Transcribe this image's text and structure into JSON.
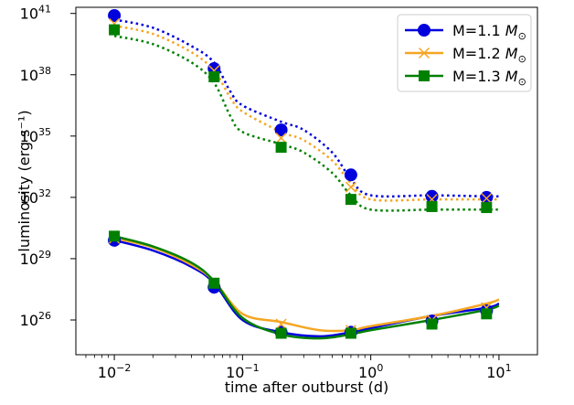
{
  "chart_data": {
    "type": "line",
    "xscale": "log",
    "yscale": "log",
    "xlabel": "time after outburst (d)",
    "ylabel": "luminosity (erg s⁻¹)",
    "xlim_log10": [
      -2.3,
      1.3
    ],
    "ylim_log10": [
      24.3,
      41.3
    ],
    "x_ticks": [
      {
        "value": 0.01,
        "base": "10",
        "exp": "−2"
      },
      {
        "value": 0.1,
        "base": "10",
        "exp": "−1"
      },
      {
        "value": 1,
        "base": "10",
        "exp": "0"
      },
      {
        "value": 10,
        "base": "10",
        "exp": "1"
      }
    ],
    "y_ticks": [
      {
        "value": 1e+26,
        "base": "10",
        "exp": "26"
      },
      {
        "value": 1e+29,
        "base": "10",
        "exp": "29"
      },
      {
        "value": 1e+32,
        "base": "10",
        "exp": "32"
      },
      {
        "value": 1e+35,
        "base": "10",
        "exp": "35"
      },
      {
        "value": 1e+38,
        "base": "10",
        "exp": "38"
      },
      {
        "value": 1e+41,
        "base": "10",
        "exp": "41"
      }
    ],
    "legend_position": "top-right",
    "series": [
      {
        "name": "M=1.1 M⊙",
        "legend_text": "M=1.1 ",
        "legend_sym": "M",
        "legend_sub": "⊙",
        "color": "#0000dd",
        "marker": "circle",
        "dotted_logL": [
          [
            0.01,
            40.7
          ],
          [
            0.02,
            40.3
          ],
          [
            0.04,
            39.4
          ],
          [
            0.06,
            38.6
          ],
          [
            0.08,
            37.2
          ],
          [
            0.1,
            36.5
          ],
          [
            0.2,
            35.7
          ],
          [
            0.3,
            35.3
          ],
          [
            0.5,
            34.2
          ],
          [
            0.7,
            32.9
          ],
          [
            1.0,
            32.1
          ],
          [
            3,
            32.1
          ],
          [
            8,
            32.05
          ],
          [
            10,
            32.05
          ]
        ],
        "dotted_markers": [
          [
            0.01,
            40.9
          ],
          [
            0.06,
            38.3
          ],
          [
            0.2,
            35.3
          ],
          [
            0.7,
            33.1
          ],
          [
            3,
            32.05
          ],
          [
            8,
            32.0
          ]
        ],
        "solid_logL": [
          [
            0.01,
            29.9
          ],
          [
            0.02,
            29.4
          ],
          [
            0.04,
            28.6
          ],
          [
            0.06,
            27.8
          ],
          [
            0.1,
            26.0
          ],
          [
            0.2,
            25.4
          ],
          [
            0.4,
            25.2
          ],
          [
            0.7,
            25.4
          ],
          [
            1.0,
            25.6
          ],
          [
            3,
            26.2
          ],
          [
            8,
            26.6
          ],
          [
            10,
            26.8
          ]
        ],
        "solid_markers": [
          [
            0.01,
            29.9
          ],
          [
            0.06,
            27.6
          ],
          [
            0.2,
            25.4
          ],
          [
            0.7,
            25.4
          ],
          [
            3,
            25.95
          ],
          [
            8,
            26.45
          ]
        ]
      },
      {
        "name": "M=1.2 M⊙",
        "legend_text": "M=1.2 ",
        "legend_sym": "M",
        "legend_sub": "⊙",
        "color": "#f5a623",
        "marker": "x",
        "dotted_logL": [
          [
            0.01,
            40.4
          ],
          [
            0.02,
            40.0
          ],
          [
            0.04,
            39.1
          ],
          [
            0.06,
            38.2
          ],
          [
            0.08,
            36.9
          ],
          [
            0.1,
            36.2
          ],
          [
            0.2,
            35.2
          ],
          [
            0.3,
            34.8
          ],
          [
            0.5,
            33.8
          ],
          [
            0.7,
            32.7
          ],
          [
            1.0,
            31.9
          ],
          [
            3,
            31.9
          ],
          [
            8,
            31.9
          ],
          [
            10,
            31.9
          ]
        ],
        "dotted_markers": [
          [
            0.01,
            40.5
          ],
          [
            0.06,
            38.2
          ],
          [
            0.2,
            34.9
          ],
          [
            0.7,
            32.5
          ],
          [
            3,
            31.9
          ],
          [
            8,
            31.95
          ]
        ],
        "solid_logL": [
          [
            0.01,
            30.0
          ],
          [
            0.02,
            29.55
          ],
          [
            0.04,
            28.7
          ],
          [
            0.06,
            27.9
          ],
          [
            0.1,
            26.3
          ],
          [
            0.2,
            25.9
          ],
          [
            0.4,
            25.5
          ],
          [
            0.7,
            25.5
          ],
          [
            1.0,
            25.7
          ],
          [
            3,
            26.2
          ],
          [
            8,
            26.8
          ],
          [
            10,
            27.0
          ]
        ],
        "solid_markers": [
          [
            0.01,
            30.0
          ],
          [
            0.06,
            27.8
          ],
          [
            0.2,
            25.8
          ],
          [
            0.7,
            25.5
          ],
          [
            3,
            26.0
          ],
          [
            8,
            26.6
          ]
        ]
      },
      {
        "name": "M=1.3 M⊙",
        "legend_text": "M=1.3 ",
        "legend_sym": "M",
        "legend_sub": "⊙",
        "color": "#008000",
        "marker": "square",
        "dotted_logL": [
          [
            0.01,
            39.9
          ],
          [
            0.02,
            39.5
          ],
          [
            0.04,
            38.6
          ],
          [
            0.06,
            37.6
          ],
          [
            0.08,
            36.0
          ],
          [
            0.1,
            35.2
          ],
          [
            0.2,
            34.6
          ],
          [
            0.3,
            34.2
          ],
          [
            0.5,
            33.2
          ],
          [
            0.7,
            32.1
          ],
          [
            1.0,
            31.4
          ],
          [
            3,
            31.4
          ],
          [
            8,
            31.4
          ],
          [
            10,
            31.4
          ]
        ],
        "dotted_markers": [
          [
            0.01,
            40.2
          ],
          [
            0.06,
            37.9
          ],
          [
            0.2,
            34.45
          ],
          [
            0.7,
            31.9
          ],
          [
            3,
            31.55
          ],
          [
            8,
            31.5
          ]
        ],
        "solid_logL": [
          [
            0.01,
            30.1
          ],
          [
            0.02,
            29.6
          ],
          [
            0.04,
            28.8
          ],
          [
            0.06,
            27.9
          ],
          [
            0.1,
            26.1
          ],
          [
            0.2,
            25.3
          ],
          [
            0.4,
            25.1
          ],
          [
            0.7,
            25.3
          ],
          [
            1.0,
            25.5
          ],
          [
            3,
            26.0
          ],
          [
            8,
            26.5
          ],
          [
            10,
            26.7
          ]
        ],
        "solid_markers": [
          [
            0.01,
            30.1
          ],
          [
            0.06,
            27.8
          ],
          [
            0.2,
            25.35
          ],
          [
            0.7,
            25.35
          ],
          [
            3,
            25.8
          ],
          [
            8,
            26.3
          ]
        ]
      }
    ]
  }
}
